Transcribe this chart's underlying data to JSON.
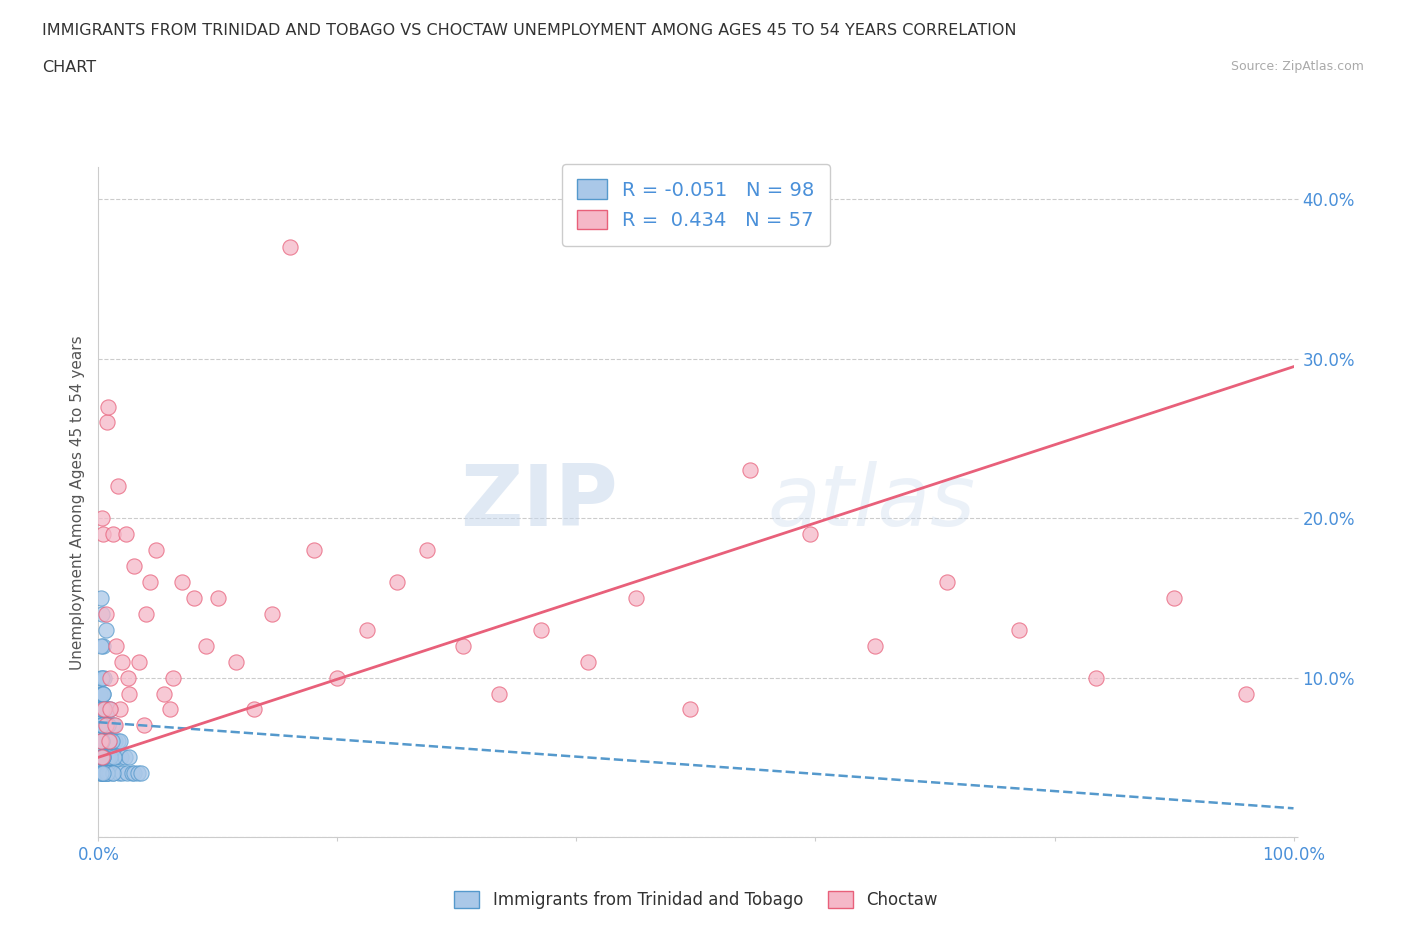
{
  "title_line1": "IMMIGRANTS FROM TRINIDAD AND TOBAGO VS CHOCTAW UNEMPLOYMENT AMONG AGES 45 TO 54 YEARS CORRELATION",
  "title_line2": "CHART",
  "source_text": "Source: ZipAtlas.com",
  "ylabel": "Unemployment Among Ages 45 to 54 years",
  "xlim": [
    0.0,
    1.0
  ],
  "ylim": [
    0.0,
    0.42
  ],
  "x_ticks": [
    0.0,
    0.2,
    0.4,
    0.6,
    0.8,
    1.0
  ],
  "y_ticks": [
    0.0,
    0.1,
    0.2,
    0.3,
    0.4
  ],
  "y_tick_labels": [
    "",
    "10.0%",
    "20.0%",
    "30.0%",
    "40.0%"
  ],
  "watermark_zip": "ZIP",
  "watermark_atlas": "atlas",
  "blue_color": "#aac8e8",
  "blue_edge": "#5599cc",
  "pink_color": "#f5b8c8",
  "pink_edge": "#e8607a",
  "blue_line_color": "#5599cc",
  "pink_line_color": "#e8607a",
  "r_blue": -0.051,
  "n_blue": 98,
  "r_pink": 0.434,
  "n_pink": 57,
  "blue_trend_x0": 0.0,
  "blue_trend_y0": 0.072,
  "blue_trend_x1": 1.0,
  "blue_trend_y1": 0.018,
  "pink_trend_x0": 0.0,
  "pink_trend_y0": 0.05,
  "pink_trend_x1": 1.0,
  "pink_trend_y1": 0.295,
  "blue_scatter_x": [
    0.001,
    0.001,
    0.001,
    0.001,
    0.002,
    0.002,
    0.002,
    0.002,
    0.002,
    0.002,
    0.003,
    0.003,
    0.003,
    0.003,
    0.003,
    0.003,
    0.004,
    0.004,
    0.004,
    0.004,
    0.004,
    0.005,
    0.005,
    0.005,
    0.005,
    0.005,
    0.006,
    0.006,
    0.006,
    0.006,
    0.007,
    0.007,
    0.007,
    0.007,
    0.008,
    0.008,
    0.008,
    0.009,
    0.009,
    0.009,
    0.01,
    0.01,
    0.01,
    0.011,
    0.011,
    0.012,
    0.012,
    0.013,
    0.013,
    0.014,
    0.015,
    0.016,
    0.017,
    0.018,
    0.019,
    0.02,
    0.022,
    0.024,
    0.026,
    0.028,
    0.03,
    0.033,
    0.036,
    0.003,
    0.004,
    0.005,
    0.006,
    0.002,
    0.002,
    0.003,
    0.003,
    0.003,
    0.004,
    0.004,
    0.005,
    0.005,
    0.006,
    0.006,
    0.007,
    0.007,
    0.008,
    0.008,
    0.009,
    0.01,
    0.011,
    0.012,
    0.013,
    0.002,
    0.003,
    0.004,
    0.002,
    0.003,
    0.002,
    0.003,
    0.004,
    0.003,
    0.002,
    0.004
  ],
  "blue_scatter_y": [
    0.05,
    0.07,
    0.04,
    0.09,
    0.06,
    0.08,
    0.04,
    0.1,
    0.05,
    0.07,
    0.06,
    0.09,
    0.04,
    0.07,
    0.05,
    0.08,
    0.05,
    0.07,
    0.04,
    0.09,
    0.06,
    0.05,
    0.08,
    0.04,
    0.07,
    0.06,
    0.05,
    0.08,
    0.04,
    0.07,
    0.06,
    0.05,
    0.08,
    0.04,
    0.06,
    0.05,
    0.08,
    0.05,
    0.07,
    0.04,
    0.06,
    0.05,
    0.08,
    0.05,
    0.07,
    0.06,
    0.04,
    0.07,
    0.05,
    0.06,
    0.05,
    0.06,
    0.04,
    0.06,
    0.05,
    0.04,
    0.05,
    0.04,
    0.05,
    0.04,
    0.04,
    0.04,
    0.04,
    0.14,
    0.12,
    0.1,
    0.13,
    0.15,
    0.12,
    0.08,
    0.1,
    0.06,
    0.09,
    0.07,
    0.08,
    0.06,
    0.07,
    0.05,
    0.06,
    0.04,
    0.07,
    0.05,
    0.06,
    0.05,
    0.06,
    0.04,
    0.05,
    0.04,
    0.06,
    0.05,
    0.07,
    0.08,
    0.05,
    0.06,
    0.04,
    0.07,
    0.06,
    0.05
  ],
  "pink_scatter_x": [
    0.002,
    0.003,
    0.004,
    0.005,
    0.006,
    0.007,
    0.008,
    0.009,
    0.01,
    0.012,
    0.014,
    0.016,
    0.018,
    0.02,
    0.023,
    0.026,
    0.03,
    0.034,
    0.038,
    0.043,
    0.048,
    0.055,
    0.062,
    0.07,
    0.08,
    0.09,
    0.1,
    0.115,
    0.13,
    0.145,
    0.16,
    0.18,
    0.2,
    0.225,
    0.25,
    0.275,
    0.305,
    0.335,
    0.37,
    0.41,
    0.45,
    0.495,
    0.545,
    0.595,
    0.65,
    0.71,
    0.77,
    0.835,
    0.9,
    0.96,
    0.003,
    0.006,
    0.01,
    0.015,
    0.025,
    0.04,
    0.06
  ],
  "pink_scatter_y": [
    0.06,
    0.05,
    0.19,
    0.08,
    0.07,
    0.26,
    0.27,
    0.06,
    0.1,
    0.19,
    0.07,
    0.22,
    0.08,
    0.11,
    0.19,
    0.09,
    0.17,
    0.11,
    0.07,
    0.16,
    0.18,
    0.09,
    0.1,
    0.16,
    0.15,
    0.12,
    0.15,
    0.11,
    0.08,
    0.14,
    0.37,
    0.18,
    0.1,
    0.13,
    0.16,
    0.18,
    0.12,
    0.09,
    0.13,
    0.11,
    0.15,
    0.08,
    0.23,
    0.19,
    0.12,
    0.16,
    0.13,
    0.1,
    0.15,
    0.09,
    0.2,
    0.14,
    0.08,
    0.12,
    0.1,
    0.14,
    0.08
  ],
  "grid_color": "#cccccc",
  "background_color": "#ffffff",
  "title_color": "#333333",
  "axis_label_color": "#555555",
  "tick_label_color": "#4a90d9"
}
